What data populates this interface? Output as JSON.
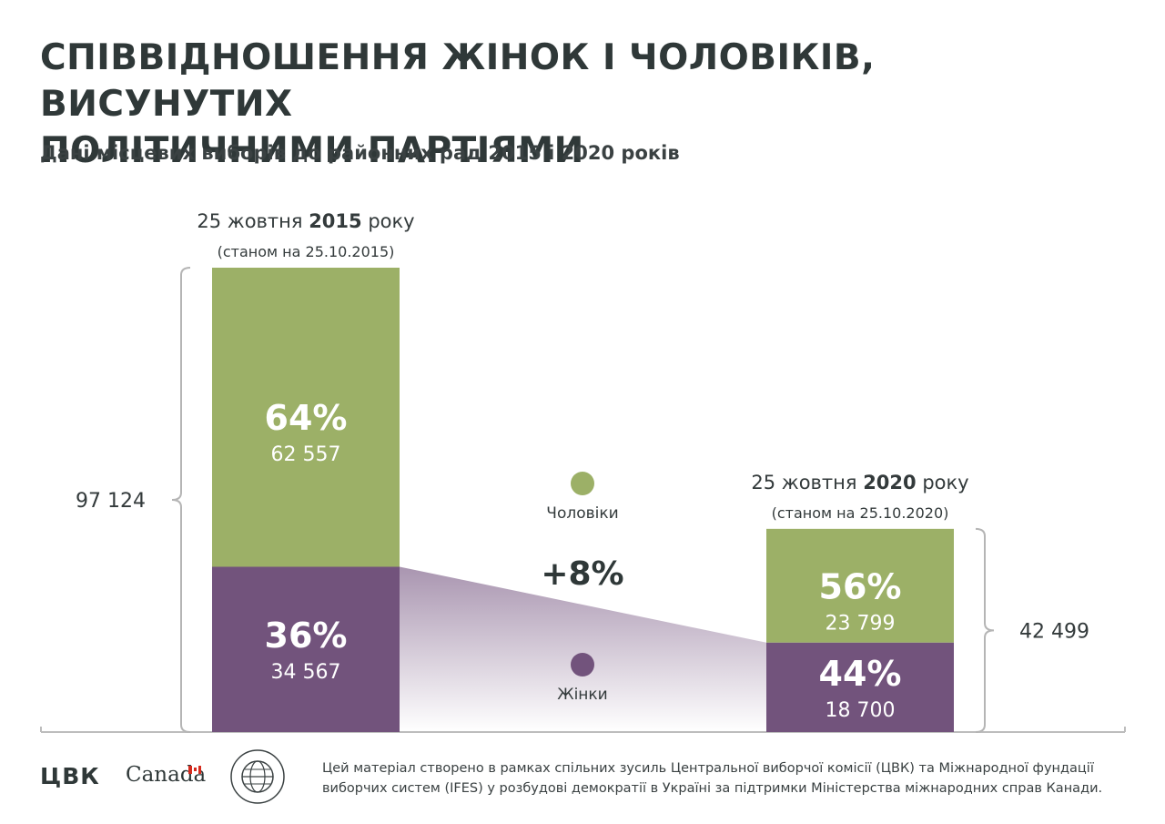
{
  "title": {
    "line1": "СПІВВІДНОШЕННЯ ЖІНОК І ЧОЛОВІКІВ, ВИСУНУТИХ",
    "line2": "ПОЛІТИЧНИМИ ПАРТІЯМИ"
  },
  "subtitle": "Дані місцевих виборів до районних рад 2015 і 2020 років",
  "colors": {
    "men": "#9cb067",
    "women": "#72537c",
    "gradient_start": "#a995b0",
    "text": "#333a3b",
    "bracket": "#b5b5b5"
  },
  "chart_data": {
    "type": "bar",
    "stacked": true,
    "categories": [
      "2015",
      "2020"
    ],
    "category_labels": [
      {
        "pre": "25 жовтня ",
        "bold": "2015",
        "post": " року",
        "note": "(станом на 25.10.2015)"
      },
      {
        "pre": "25 жовтня ",
        "bold": "2020",
        "post": " року",
        "note": "(станом на 25.10.2020)"
      }
    ],
    "series": [
      {
        "name": "Жінки",
        "values": [
          34567,
          18700
        ],
        "percent_labels": [
          "36%",
          "44%"
        ],
        "value_labels": [
          "34 567",
          "18 700"
        ]
      },
      {
        "name": "Чоловіки",
        "values": [
          62557,
          23799
        ],
        "percent_labels": [
          "64%",
          "56%"
        ],
        "value_labels": [
          "62 557",
          "23 799"
        ]
      }
    ],
    "totals": [
      97124,
      42499
    ],
    "total_labels": [
      "97 124",
      "42 499"
    ],
    "annotation": "+8%",
    "legend": [
      "Чоловіки",
      "Жінки"
    ]
  },
  "footer": {
    "cvk_logo": "ЦВК",
    "canada_logo": "Canada",
    "ifes_seal_text": "МІЖНАРОДНА ФУНДАЦІЯ ВИБОРЧИХ СИСТЕМ · IFES",
    "note_line1": "Цей матеріал створено в рамках спільних зусиль Центральної виборчої комісії (ЦВК) та Міжнародної фундації",
    "note_line2": "виборчих систем (IFES) у розбудові демократії в Україні за підтримки Міністерства міжнародних справ Канади."
  }
}
